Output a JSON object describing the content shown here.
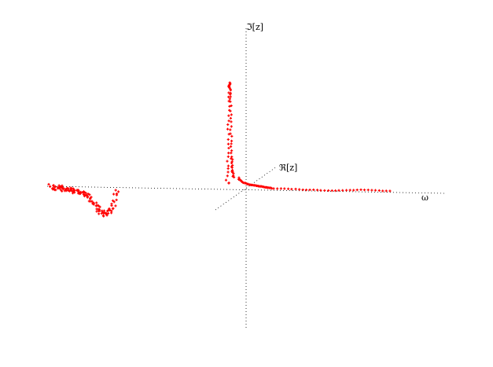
{
  "chart_data": {
    "type": "scatter",
    "title": "",
    "projection": "3d",
    "axes": [
      {
        "id": "w",
        "label": "ω"
      },
      {
        "id": "re",
        "label": "ℜ[z]"
      },
      {
        "id": "im",
        "label": "ℑ[z]"
      }
    ],
    "marker": "+",
    "color": "#ff0000",
    "grid": false,
    "legend": "none",
    "series": [
      {
        "values_description_free": true,
        "points": [
          [
            -1.0,
            0.0,
            0.02
          ],
          [
            -0.98,
            0.0,
            0.0
          ],
          [
            -0.96,
            0.0,
            0.01
          ],
          [
            -0.94,
            0.0,
            -0.01
          ],
          [
            -0.92,
            0.0,
            0.0
          ],
          [
            -0.9,
            0.0,
            -0.02
          ],
          [
            -0.88,
            0.0,
            -0.03
          ],
          [
            -0.86,
            0.0,
            -0.04
          ],
          [
            -0.84,
            0.0,
            -0.05
          ],
          [
            -0.82,
            0.0,
            -0.06
          ],
          [
            -0.8,
            0.0,
            -0.09
          ],
          [
            -0.78,
            0.0,
            -0.14
          ],
          [
            -0.76,
            0.0,
            -0.19
          ],
          [
            -0.74,
            0.0,
            -0.23
          ],
          [
            -0.72,
            0.0,
            -0.24
          ],
          [
            -0.7,
            0.0,
            -0.22
          ],
          [
            -0.68,
            0.0,
            -0.15
          ],
          [
            -0.66,
            0.0,
            0.0
          ],
          [
            -0.64,
            0.0,
            0.25
          ],
          [
            -0.62,
            0.0,
            0.6
          ],
          [
            -0.6,
            0.0,
            0.95
          ],
          [
            -0.58,
            0.0,
            1.0
          ],
          [
            -0.56,
            0.0,
            0.85
          ],
          [
            -0.54,
            0.0,
            0.55
          ],
          [
            -0.52,
            0.0,
            0.3
          ],
          [
            -0.5,
            0.0,
            0.18
          ],
          [
            -0.46,
            0.0,
            0.1
          ],
          [
            -0.4,
            0.0,
            0.06
          ],
          [
            -0.3,
            0.0,
            0.04
          ],
          [
            -0.2,
            0.0,
            0.03
          ],
          [
            -0.1,
            0.0,
            0.02
          ],
          [
            0.0,
            0.0,
            0.01
          ],
          [
            0.1,
            0.0,
            0.0
          ],
          [
            0.2,
            0.0,
            -0.01
          ],
          [
            0.3,
            0.0,
            0.0
          ],
          [
            0.4,
            0.0,
            -0.01
          ]
        ]
      }
    ]
  }
}
